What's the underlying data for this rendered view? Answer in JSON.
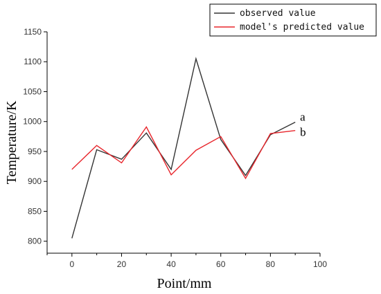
{
  "chart_data": {
    "type": "line",
    "title": "",
    "xlabel": "Point/mm",
    "ylabel": "Temperature/K",
    "xlim": [
      -10,
      100
    ],
    "ylim": [
      780,
      1150
    ],
    "xticks": [
      "0",
      "20",
      "40",
      "60",
      "80",
      "100"
    ],
    "yticks": [
      "800",
      "850",
      "900",
      "950",
      "1000",
      "1050",
      "1100",
      "1150"
    ],
    "grid": false,
    "legend_position": "top-right",
    "series": [
      {
        "name": "observed value",
        "end_label": "a",
        "color": "#333333",
        "x": [
          0,
          10,
          20,
          30,
          40,
          50,
          60,
          70,
          80,
          90
        ],
        "y": [
          805,
          953,
          937,
          981,
          920,
          1105,
          970,
          910,
          978,
          999
        ]
      },
      {
        "name": "model's predicted value",
        "end_label": "b",
        "color": "#e8262c",
        "x": [
          0,
          10,
          20,
          30,
          40,
          50,
          60,
          70,
          80,
          90
        ],
        "y": [
          920,
          960,
          931,
          991,
          911,
          952,
          975,
          905,
          980,
          985
        ]
      }
    ]
  }
}
